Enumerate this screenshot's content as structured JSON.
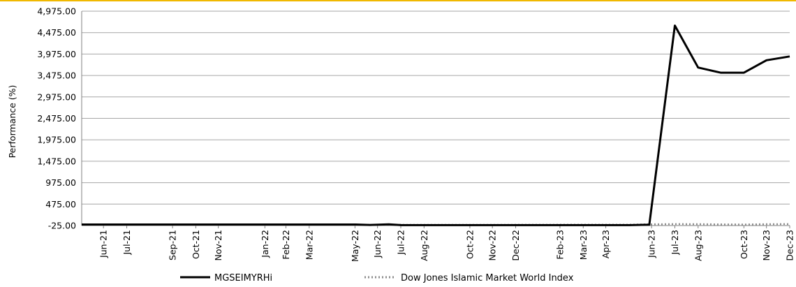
{
  "colors": {
    "top_border": "#f0b800",
    "grid": "#a6a6a6",
    "axis": "#808080",
    "series_primary": "#000000",
    "series_benchmark": "#8c8c8c"
  },
  "chart_data": {
    "type": "line",
    "title": "",
    "xlabel": "",
    "ylabel": "Performance (%)",
    "ylim": [
      -25,
      4975
    ],
    "yticks": [
      -25,
      475,
      975,
      1475,
      1975,
      2475,
      2975,
      3475,
      3975,
      4475,
      4975
    ],
    "ytick_labels": [
      "-25.00",
      "475.00",
      "975.00",
      "1,475.00",
      "1,975.00",
      "2,475.00",
      "2,975.00",
      "3,475.00",
      "3,975.00",
      "4,475.00",
      "4,975.00"
    ],
    "x": [
      "2021-06",
      "2021-07",
      "2021-08",
      "2021-09",
      "2021-10",
      "2021-11",
      "2021-12",
      "2022-01",
      "2022-02",
      "2022-03",
      "2022-04",
      "2022-05",
      "2022-06",
      "2022-07",
      "2022-08",
      "2022-09",
      "2022-10",
      "2022-11",
      "2022-12",
      "2023-01",
      "2023-02",
      "2023-03",
      "2023-04",
      "2023-05",
      "2023-06",
      "2023-07",
      "2023-08",
      "2023-09",
      "2023-10",
      "2023-11",
      "2023-12"
    ],
    "xtick_labels": [
      "Jun-21",
      "Jul-21",
      "Sep-21",
      "Oct-21",
      "Nov-21",
      "Jan-22",
      "Feb-22",
      "Mar-22",
      "May-22",
      "Jun-22",
      "Jul-22",
      "Aug-22",
      "Oct-22",
      "Nov-22",
      "Dec-22",
      "Feb-23",
      "Mar-23",
      "Apr-23",
      "Jun-23",
      "Jul-23",
      "Aug-23",
      "Oct-23",
      "Nov-23",
      "Dec-23"
    ],
    "xtick_dates": [
      "2021-06-30",
      "2021-07-31",
      "2021-09-30",
      "2021-10-31",
      "2021-11-30",
      "2022-01-31",
      "2022-02-28",
      "2022-03-31",
      "2022-05-31",
      "2022-06-30",
      "2022-07-31",
      "2022-08-31",
      "2022-10-31",
      "2022-11-30",
      "2022-12-31",
      "2023-02-28",
      "2023-03-31",
      "2023-04-30",
      "2023-06-30",
      "2023-07-31",
      "2023-08-31",
      "2023-10-31",
      "2023-11-30",
      "2023-12-31"
    ],
    "series": [
      {
        "name": "MGSEIMYRHi",
        "style": "solid",
        "color": "#000000",
        "points": [
          [
            "2021-06-01",
            0
          ],
          [
            "2021-07-01",
            0
          ],
          [
            "2021-08-01",
            0
          ],
          [
            "2021-09-01",
            0
          ],
          [
            "2021-10-01",
            0
          ],
          [
            "2021-11-01",
            0
          ],
          [
            "2021-12-01",
            0
          ],
          [
            "2022-01-01",
            0
          ],
          [
            "2022-02-01",
            0
          ],
          [
            "2022-03-01",
            0
          ],
          [
            "2022-04-01",
            0
          ],
          [
            "2022-05-01",
            0
          ],
          [
            "2022-06-01",
            0
          ],
          [
            "2022-06-20",
            -10
          ],
          [
            "2022-07-15",
            5
          ],
          [
            "2022-08-01",
            -15
          ],
          [
            "2022-09-01",
            -15
          ],
          [
            "2022-10-01",
            -15
          ],
          [
            "2022-11-01",
            -15
          ],
          [
            "2022-12-01",
            -15
          ],
          [
            "2023-01-01",
            -15
          ],
          [
            "2023-02-01",
            -15
          ],
          [
            "2023-03-01",
            -15
          ],
          [
            "2023-04-01",
            -15
          ],
          [
            "2023-05-01",
            -15
          ],
          [
            "2023-06-01",
            -15
          ],
          [
            "2023-06-27",
            -5
          ],
          [
            "2023-07-31",
            4640
          ],
          [
            "2023-08-31",
            3660
          ],
          [
            "2023-09-30",
            3540
          ],
          [
            "2023-10-31",
            3540
          ],
          [
            "2023-11-30",
            3830
          ],
          [
            "2023-12-31",
            3920
          ]
        ]
      },
      {
        "name": "Dow Jones Islamic Market World Index",
        "style": "dotted",
        "color": "#8c8c8c",
        "points": [
          [
            "2021-06-01",
            0
          ],
          [
            "2021-09-01",
            0
          ],
          [
            "2021-12-01",
            0
          ],
          [
            "2022-03-01",
            -2
          ],
          [
            "2022-06-01",
            -5
          ],
          [
            "2022-09-01",
            -8
          ],
          [
            "2022-12-01",
            -8
          ],
          [
            "2023-03-01",
            -6
          ],
          [
            "2023-06-01",
            -4
          ],
          [
            "2023-07-01",
            5
          ],
          [
            "2023-08-01",
            10
          ],
          [
            "2023-09-01",
            8
          ],
          [
            "2023-10-01",
            2
          ],
          [
            "2023-11-01",
            0
          ],
          [
            "2023-12-01",
            8
          ],
          [
            "2023-12-31",
            10
          ]
        ]
      }
    ],
    "grid": true,
    "legend_position": "bottom"
  }
}
